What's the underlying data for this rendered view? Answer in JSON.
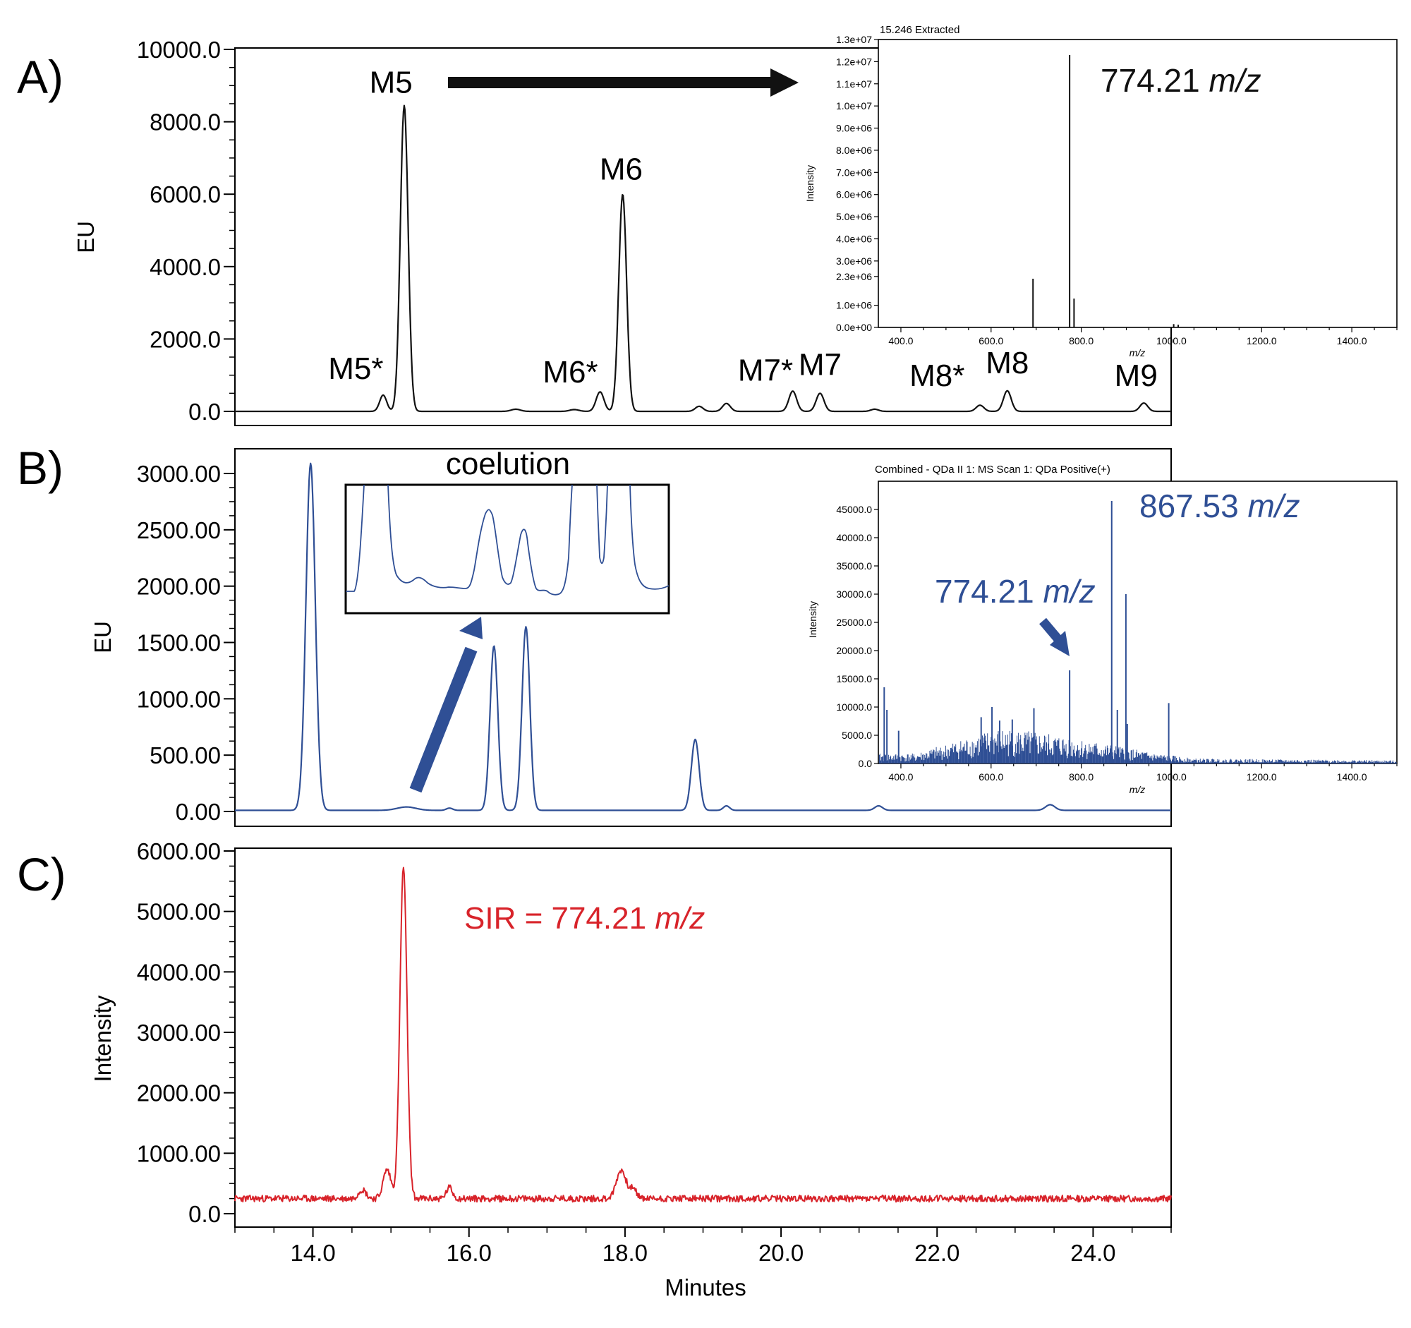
{
  "figure": {
    "colors": {
      "A": "#111111",
      "B": "#2f4f95",
      "C": "#d8232a",
      "arrow_black": "#111111",
      "arrow_blue": "#2f4f95"
    }
  },
  "chart_data": [
    {
      "id": "A",
      "panel_label": "A)",
      "type": "line",
      "xlabel": "",
      "ylabel": "EU",
      "xlim": [
        13.0,
        25.0
      ],
      "ylim": [
        0,
        10000
      ],
      "yticks": [
        0,
        2000,
        4000,
        6000,
        8000,
        10000
      ],
      "ytick_labels": [
        "0.0",
        "2000.0",
        "4000.0",
        "6000.0",
        "8000.0",
        "10000.0"
      ],
      "xticks": [],
      "baseline": 0,
      "noise": 0,
      "peaks": [
        {
          "x": 14.9,
          "y": 450,
          "w": 0.045
        },
        {
          "x": 15.17,
          "y": 8450,
          "w": 0.05
        },
        {
          "x": 16.6,
          "y": 60,
          "w": 0.06
        },
        {
          "x": 17.35,
          "y": 50,
          "w": 0.06
        },
        {
          "x": 17.68,
          "y": 540,
          "w": 0.05
        },
        {
          "x": 17.97,
          "y": 6000,
          "w": 0.05
        },
        {
          "x": 18.95,
          "y": 140,
          "w": 0.05
        },
        {
          "x": 19.3,
          "y": 220,
          "w": 0.05
        },
        {
          "x": 20.15,
          "y": 560,
          "w": 0.05
        },
        {
          "x": 20.5,
          "y": 500,
          "w": 0.05
        },
        {
          "x": 21.2,
          "y": 60,
          "w": 0.05
        },
        {
          "x": 22.55,
          "y": 170,
          "w": 0.05
        },
        {
          "x": 22.9,
          "y": 570,
          "w": 0.05
        },
        {
          "x": 24.65,
          "y": 230,
          "w": 0.05
        }
      ],
      "annotations": [
        {
          "text": "M5*",
          "x": 14.55,
          "y": 900
        },
        {
          "text": "M5",
          "x": 15.0,
          "y": 8800
        },
        {
          "text": "M6*",
          "x": 17.3,
          "y": 800
        },
        {
          "text": "M6",
          "x": 17.95,
          "y": 6400
        },
        {
          "text": "M7*",
          "x": 19.8,
          "y": 850
        },
        {
          "text": "M7",
          "x": 20.5,
          "y": 1000
        },
        {
          "text": "M8*",
          "x": 22.0,
          "y": 700
        },
        {
          "text": "M8",
          "x": 22.9,
          "y": 1050
        },
        {
          "text": "M9",
          "x": 24.55,
          "y": 700
        }
      ]
    },
    {
      "id": "A-inset",
      "type": "bar",
      "title": "15.246 Extracted",
      "xlabel": "m/z",
      "ylabel": "Intensity",
      "xlim": [
        350,
        1500
      ],
      "ylim": [
        0,
        13000000
      ],
      "yticks": [
        0,
        1000000,
        2300000,
        3000000,
        4000000,
        5000000,
        6000000,
        7000000,
        8000000,
        9000000,
        10000000,
        11000000,
        12000000,
        13000000
      ],
      "ytick_labels": [
        "0.0e+00",
        "1.0e+06",
        "2.3e+06",
        "3.0e+06",
        "4.0e+06",
        "5.0e+06",
        "6.0e+06",
        "7.0e+06",
        "8.0e+06",
        "9.0e+06",
        "1.0e+07",
        "1.1e+07",
        "1.2e+07",
        "1.3e+07"
      ],
      "xticks": [
        400,
        600,
        800,
        1000,
        1200,
        1400
      ],
      "xtick_labels": [
        "400.0",
        "600.0",
        "800.0",
        "1000.0",
        "1200.0",
        "1400.0"
      ],
      "sticks": [
        {
          "x": 693,
          "y": 2200000
        },
        {
          "x": 774.21,
          "y": 12300000
        },
        {
          "x": 784,
          "y": 1300000
        },
        {
          "x": 1005,
          "y": 150000
        },
        {
          "x": 1015,
          "y": 120000
        }
      ],
      "annotation": {
        "number": "774.21",
        "unit": "m/z"
      }
    },
    {
      "id": "B",
      "panel_label": "B)",
      "type": "line",
      "xlabel": "",
      "ylabel": "EU",
      "xlim": [
        13.0,
        25.0
      ],
      "ylim": [
        -130,
        3250
      ],
      "yticks": [
        0,
        500,
        1000,
        1500,
        2000,
        2500,
        3000
      ],
      "ytick_labels": [
        "0.00",
        "500.00",
        "1000.00",
        "1500.00",
        "2000.00",
        "2500.00",
        "3000.00"
      ],
      "xticks": [],
      "baseline": 10,
      "noise": 0,
      "peaks": [
        {
          "x": 13.97,
          "y": 3080,
          "w": 0.06
        },
        {
          "x": 15.2,
          "y": 30,
          "w": 0.12
        },
        {
          "x": 15.75,
          "y": 20,
          "w": 0.04
        },
        {
          "x": 16.32,
          "y": 1460,
          "w": 0.05
        },
        {
          "x": 16.73,
          "y": 1630,
          "w": 0.05
        },
        {
          "x": 18.9,
          "y": 630,
          "w": 0.05
        },
        {
          "x": 19.3,
          "y": 40,
          "w": 0.04
        },
        {
          "x": 21.25,
          "y": 40,
          "w": 0.05
        },
        {
          "x": 23.45,
          "y": 50,
          "w": 0.06
        }
      ],
      "zoom_box_label": "coelution"
    },
    {
      "id": "B-inset",
      "type": "bar",
      "title": "Combined - QDa II 1: MS Scan 1: QDa Positive(+)",
      "xlabel": "m/z",
      "ylabel": "Intensity",
      "xlim": [
        350,
        1500
      ],
      "ylim": [
        0,
        50000
      ],
      "yticks": [
        0,
        5000,
        10000,
        15000,
        20000,
        25000,
        30000,
        35000,
        40000,
        45000
      ],
      "ytick_labels": [
        "0.0",
        "5000.0",
        "10000.0",
        "15000.0",
        "20000.0",
        "25000.0",
        "30000.0",
        "35000.0",
        "40000.0",
        "45000.0"
      ],
      "xticks": [
        400,
        600,
        800,
        1000,
        1200,
        1400
      ],
      "xtick_labels": [
        "400.0",
        "600.0",
        "800.0",
        "1000.0",
        "1200.0",
        "1400.0"
      ],
      "sticks": [
        {
          "x": 363,
          "y": 13500
        },
        {
          "x": 369,
          "y": 9500
        },
        {
          "x": 395,
          "y": 5800
        },
        {
          "x": 578,
          "y": 8200
        },
        {
          "x": 602,
          "y": 10000
        },
        {
          "x": 619,
          "y": 7600
        },
        {
          "x": 647,
          "y": 7800
        },
        {
          "x": 695,
          "y": 9800
        },
        {
          "x": 774.21,
          "y": 16500
        },
        {
          "x": 867.53,
          "y": 46500
        },
        {
          "x": 880,
          "y": 9500
        },
        {
          "x": 899,
          "y": 30000
        },
        {
          "x": 902,
          "y": 7000
        },
        {
          "x": 994,
          "y": 10700
        }
      ],
      "annotations": [
        {
          "number": "867.53",
          "unit": "m/z"
        },
        {
          "number": "774.21",
          "unit": "m/z"
        }
      ]
    },
    {
      "id": "C",
      "panel_label": "C)",
      "type": "line",
      "xlabel": "Minutes",
      "ylabel": "Intensity",
      "xlim": [
        13.0,
        25.0
      ],
      "ylim": [
        0,
        6000
      ],
      "yticks": [
        0,
        1000,
        2000,
        3000,
        4000,
        5000,
        6000
      ],
      "ytick_labels": [
        "0.0",
        "1000.00",
        "2000.00",
        "3000.00",
        "4000.00",
        "5000.00",
        "6000.00"
      ],
      "xticks": [
        14,
        16,
        18,
        20,
        22,
        24
      ],
      "xtick_labels": [
        "14.0",
        "16.0",
        "18.0",
        "20.0",
        "22.0",
        "24.0"
      ],
      "baseline": 250,
      "noise": 55,
      "peaks": [
        {
          "x": 14.63,
          "y": 150,
          "w": 0.05
        },
        {
          "x": 14.95,
          "y": 480,
          "w": 0.05
        },
        {
          "x": 15.16,
          "y": 5480,
          "w": 0.045
        },
        {
          "x": 15.75,
          "y": 180,
          "w": 0.04
        },
        {
          "x": 17.95,
          "y": 470,
          "w": 0.06
        },
        {
          "x": 18.1,
          "y": 150,
          "w": 0.05
        }
      ],
      "annotation": {
        "prefix": "SIR = 774.21",
        "unit": "m/z"
      }
    }
  ]
}
